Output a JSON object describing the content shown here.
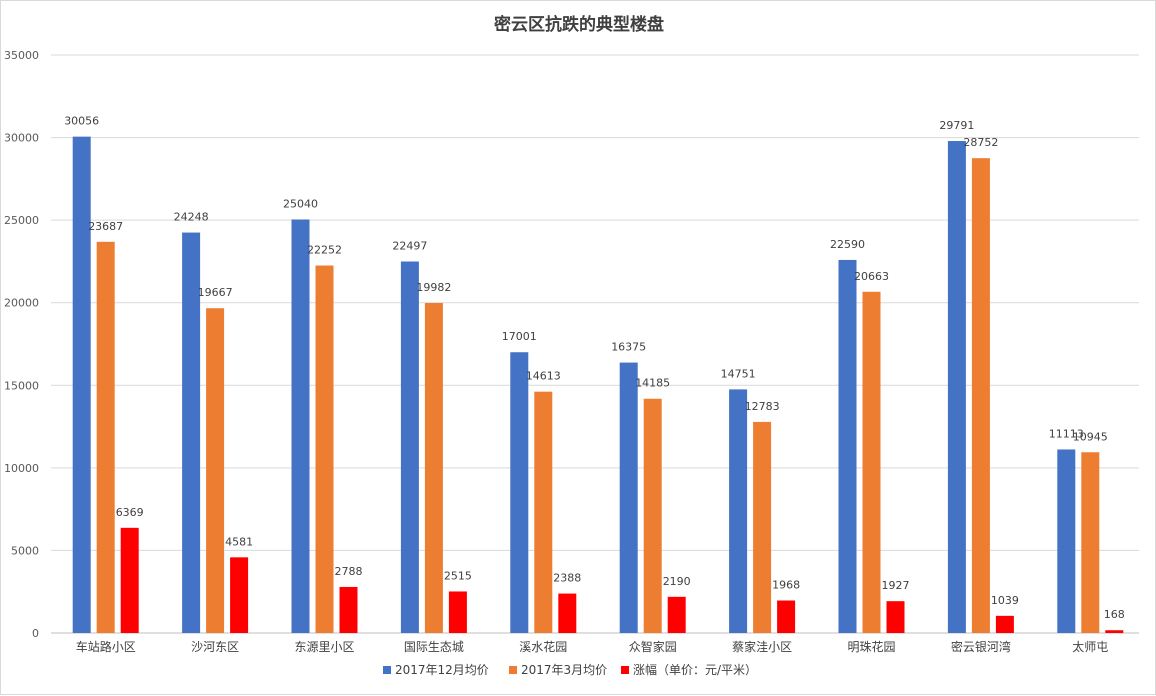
{
  "chart_data": {
    "type": "bar",
    "title": "密云区抗跌的典型楼盘",
    "xlabel": "",
    "ylabel": "",
    "ylim": [
      0,
      35000
    ],
    "yticks": [
      0,
      5000,
      10000,
      15000,
      20000,
      25000,
      30000,
      35000
    ],
    "grid": true,
    "legend_position": "bottom",
    "categories": [
      "车站路小区",
      "沙河东区",
      "东源里小区",
      "国际生态城",
      "溪水花园",
      "众智家园",
      "蔡家洼小区",
      "明珠花园",
      "密云银河湾",
      "太师屯"
    ],
    "series": [
      {
        "name": "2017年12月均价",
        "color": "#4472c4",
        "values": [
          30056,
          24248,
          25040,
          22497,
          17001,
          16375,
          14751,
          22590,
          29791,
          11113
        ]
      },
      {
        "name": "2017年3月均价",
        "color": "#ed7d31",
        "values": [
          23687,
          19667,
          22252,
          19982,
          14613,
          14185,
          12783,
          20663,
          28752,
          10945
        ]
      },
      {
        "name": "涨幅（单价：元/平米）",
        "color": "#ff0000",
        "values": [
          6369,
          4581,
          2788,
          2515,
          2388,
          2190,
          1968,
          1927,
          1039,
          168
        ]
      }
    ]
  }
}
